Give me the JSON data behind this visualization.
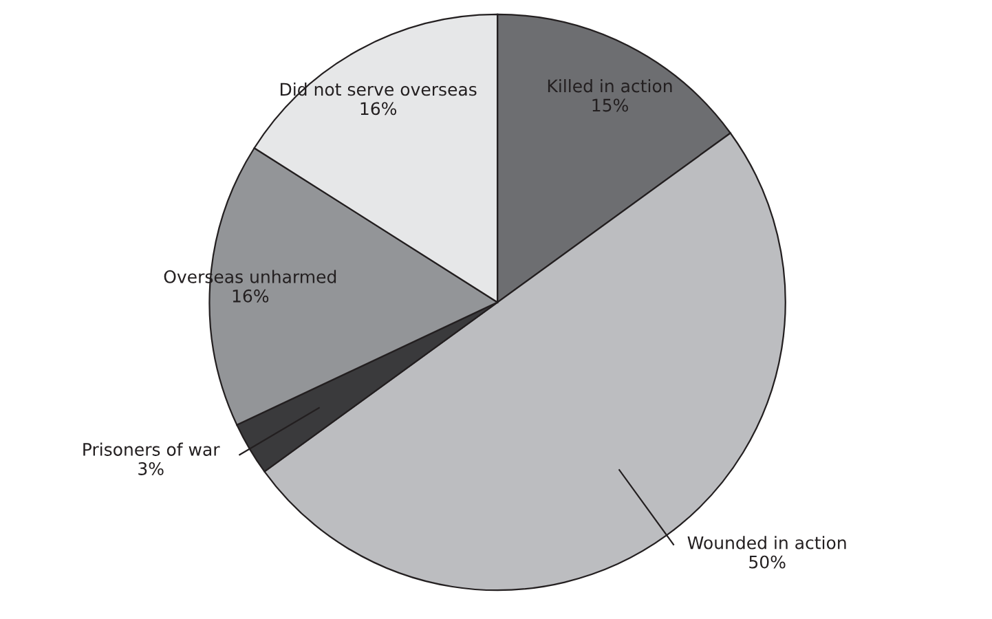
{
  "chart_data": {
    "type": "pie",
    "categories": [
      "Killed in action",
      "Wounded in action",
      "Prisoners of war",
      "Overseas unharmed",
      "Did not serve overseas"
    ],
    "values": [
      15,
      50,
      3,
      16,
      16
    ],
    "value_labels": [
      "15%",
      "50%",
      "3%",
      "16%",
      "16%"
    ],
    "colors": [
      "#6d6e71",
      "#bcbdc0",
      "#3a3a3c",
      "#939598",
      "#e6e7e8"
    ]
  }
}
